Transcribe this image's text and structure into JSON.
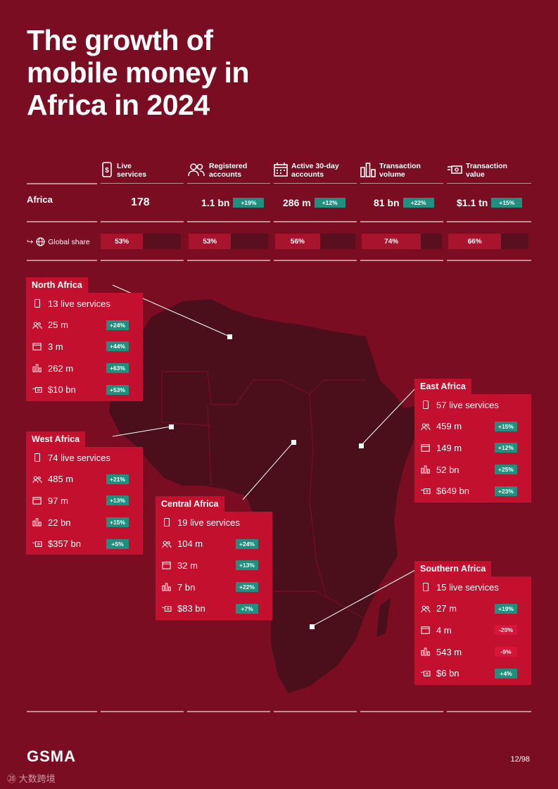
{
  "title": {
    "line1": "The growth of",
    "line2": "mobile money in",
    "line3": "Africa in 2024"
  },
  "columns": [
    {
      "label1": "Live",
      "label2": "services",
      "icon": "phone-dollar-icon"
    },
    {
      "label1": "Registered",
      "label2": "accounts",
      "icon": "users-icon"
    },
    {
      "label1": "Active 30-day",
      "label2": "accounts",
      "icon": "calendar-icon"
    },
    {
      "label1": "Transaction",
      "label2": "volume",
      "icon": "bar-chart-icon"
    },
    {
      "label1": "Transaction",
      "label2": "value",
      "icon": "cash-icon"
    }
  ],
  "africa": {
    "label": "Africa",
    "values": [
      {
        "value": "178",
        "change": ""
      },
      {
        "value": "1.1 bn",
        "change": "+19%"
      },
      {
        "value": "286 m",
        "change": "+12%"
      },
      {
        "value": "81 bn",
        "change": "+22%"
      },
      {
        "value": "$1.1 tn",
        "change": "+15%"
      }
    ]
  },
  "global_share": {
    "label": "Global share",
    "shares": [
      {
        "text": "53%",
        "pct": 53
      },
      {
        "text": "53%",
        "pct": 53
      },
      {
        "text": "56%",
        "pct": 56
      },
      {
        "text": "74%",
        "pct": 74
      },
      {
        "text": "66%",
        "pct": 66
      }
    ]
  },
  "regions": {
    "north": {
      "name": "North Africa",
      "rows": [
        {
          "value": "13 live services",
          "change": ""
        },
        {
          "value": "25 m",
          "change": "+24%"
        },
        {
          "value": "3 m",
          "change": "+44%"
        },
        {
          "value": "262 m",
          "change": "+63%"
        },
        {
          "value": "$10 bn",
          "change": "+53%"
        }
      ]
    },
    "west": {
      "name": "West Africa",
      "rows": [
        {
          "value": "74 live services",
          "change": ""
        },
        {
          "value": "485 m",
          "change": "+21%"
        },
        {
          "value": "97 m",
          "change": "+13%"
        },
        {
          "value": "22 bn",
          "change": "+15%"
        },
        {
          "value": "$357 bn",
          "change": "+5%"
        }
      ]
    },
    "central": {
      "name": "Central Africa",
      "rows": [
        {
          "value": "19 live services",
          "change": ""
        },
        {
          "value": "104 m",
          "change": "+24%"
        },
        {
          "value": "32 m",
          "change": "+13%"
        },
        {
          "value": "7 bn",
          "change": "+22%"
        },
        {
          "value": "$83 bn",
          "change": "+7%"
        }
      ]
    },
    "east": {
      "name": "East Africa",
      "rows": [
        {
          "value": "57 live services",
          "change": ""
        },
        {
          "value": "459 m",
          "change": "+15%"
        },
        {
          "value": "149 m",
          "change": "+12%"
        },
        {
          "value": "52 bn",
          "change": "+25%"
        },
        {
          "value": "$649 bn",
          "change": "+23%"
        }
      ]
    },
    "southern": {
      "name": "Southern Africa",
      "rows": [
        {
          "value": "15 live services",
          "change": ""
        },
        {
          "value": "27 m",
          "change": "+19%"
        },
        {
          "value": "4 m",
          "change": "-20%"
        },
        {
          "value": "543 m",
          "change": "-9%"
        },
        {
          "value": "$6 bn",
          "change": "+4%"
        }
      ]
    }
  },
  "footer": {
    "logo": "GSMA",
    "page": "12/98",
    "watermark": "大数跨境"
  },
  "colors": {
    "background": "#7a0d22",
    "card": "#c4102f",
    "positive": "#1f8f7f",
    "negative": "#d8143a",
    "map": "#4a0f1a"
  }
}
